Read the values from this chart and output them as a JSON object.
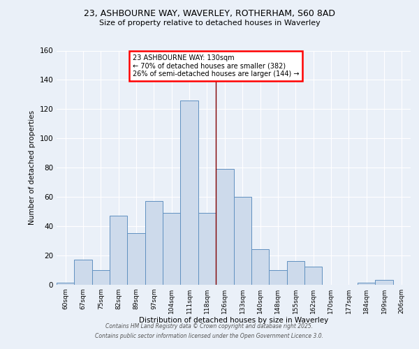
{
  "title_line1": "23, ASHBOURNE WAY, WAVERLEY, ROTHERHAM, S60 8AD",
  "title_line2": "Size of property relative to detached houses in Waverley",
  "xlabel": "Distribution of detached houses by size in Waverley",
  "ylabel": "Number of detached properties",
  "categories": [
    "60sqm",
    "67sqm",
    "75sqm",
    "82sqm",
    "89sqm",
    "97sqm",
    "104sqm",
    "111sqm",
    "118sqm",
    "126sqm",
    "133sqm",
    "140sqm",
    "148sqm",
    "155sqm",
    "162sqm",
    "170sqm",
    "177sqm",
    "184sqm",
    "199sqm",
    "206sqm"
  ],
  "values": [
    1,
    17,
    10,
    47,
    35,
    57,
    49,
    126,
    49,
    79,
    60,
    24,
    10,
    16,
    12,
    0,
    0,
    1,
    3,
    0
  ],
  "bar_color": "#cddaeb",
  "bar_edge_color": "#6090c0",
  "annotation_title": "23 ASHBOURNE WAY: 130sqm",
  "annotation_line1": "← 70% of detached houses are smaller (382)",
  "annotation_line2": "26% of semi-detached houses are larger (144) →",
  "property_line_x": 8.5,
  "property_line_color": "#800000",
  "ylim": [
    0,
    160
  ],
  "yticks": [
    0,
    20,
    40,
    60,
    80,
    100,
    120,
    140,
    160
  ],
  "footer_line1": "Contains HM Land Registry data © Crown copyright and database right 2025.",
  "footer_line2": "Contains public sector information licensed under the Open Government Licence 3.0.",
  "bg_color": "#eaf0f8"
}
